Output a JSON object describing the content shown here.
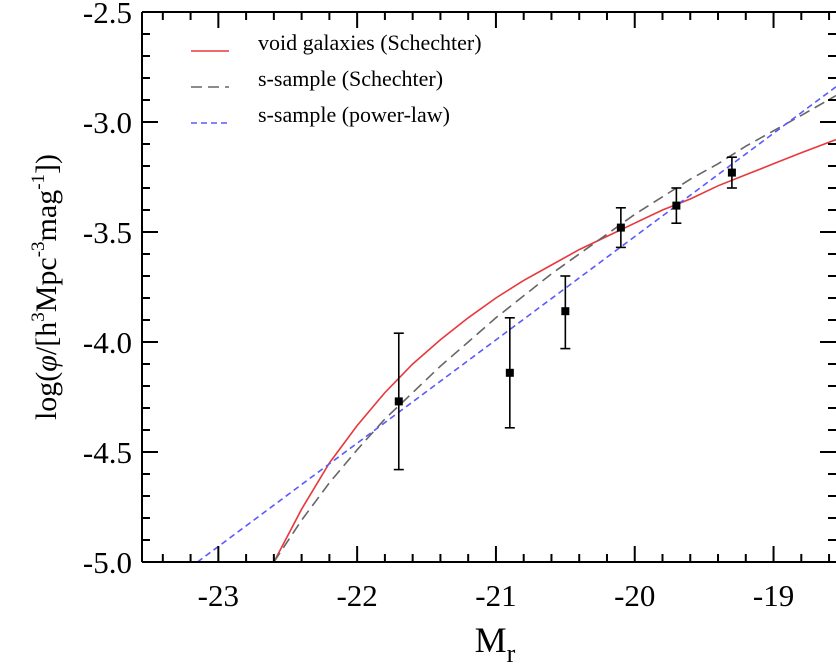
{
  "chart_data": {
    "type": "line",
    "xlabel": "M",
    "xlabel_sub": "r",
    "ylabel_parts": {
      "pre": "log(",
      "phi": "φ",
      "mid1": "/[h",
      "sup1": "3",
      "mid2": "Mpc",
      "sup2": "-3",
      "mid3": "mag",
      "sup3": "-1",
      "post": "])"
    },
    "xlim": [
      -23.55,
      -18.55
    ],
    "ylim": [
      -5.0,
      -2.5
    ],
    "x_ticks": [
      -23,
      -22,
      -21,
      -20,
      -19
    ],
    "x_tick_labels": [
      "-23",
      "-22",
      "-21",
      "-20",
      "-19"
    ],
    "y_ticks": [
      -2.5,
      -3.0,
      -3.5,
      -4.0,
      -4.5,
      -5.0
    ],
    "y_tick_labels": [
      "-2.5",
      "-3.0",
      "-3.5",
      "-4.0",
      "-4.5",
      "-5.0"
    ],
    "legend_position": "top-left",
    "series": [
      {
        "name": "void galaxies (Schechter)",
        "color": "#e8383c",
        "dash": "solid",
        "x": [
          -22.6,
          -22.4,
          -22.2,
          -22.0,
          -21.8,
          -21.6,
          -21.4,
          -21.2,
          -21.0,
          -20.8,
          -20.6,
          -20.4,
          -20.2,
          -20.0,
          -19.8,
          -19.6,
          -19.4,
          -19.2,
          -19.0,
          -18.8,
          -18.55
        ],
        "y": [
          -5.0,
          -4.76,
          -4.55,
          -4.38,
          -4.23,
          -4.1,
          -3.99,
          -3.89,
          -3.8,
          -3.72,
          -3.65,
          -3.58,
          -3.52,
          -3.46,
          -3.4,
          -3.35,
          -3.29,
          -3.24,
          -3.19,
          -3.14,
          -3.08
        ]
      },
      {
        "name": "s-sample (Schechter)",
        "color": "#666666",
        "dash": "dashed",
        "x": [
          -22.6,
          -22.4,
          -22.2,
          -22.0,
          -21.8,
          -21.6,
          -21.4,
          -21.2,
          -21.0,
          -20.8,
          -20.6,
          -20.4,
          -20.2,
          -20.0,
          -19.8,
          -19.6,
          -19.4,
          -19.2,
          -19.0,
          -18.8,
          -18.55
        ],
        "y": [
          -5.0,
          -4.81,
          -4.64,
          -4.49,
          -4.35,
          -4.23,
          -4.11,
          -4.0,
          -3.89,
          -3.79,
          -3.69,
          -3.6,
          -3.51,
          -3.42,
          -3.34,
          -3.26,
          -3.19,
          -3.11,
          -3.04,
          -2.97,
          -2.88
        ]
      },
      {
        "name": "s-sample (power-law)",
        "color": "#5a5aff",
        "dash": "dashed",
        "x": [
          -23.15,
          -18.55
        ],
        "y": [
          -5.0,
          -2.84
        ]
      }
    ],
    "data_points": {
      "x": [
        -21.7,
        -20.9,
        -20.5,
        -20.1,
        -19.7,
        -19.3
      ],
      "y": [
        -4.27,
        -4.14,
        -3.86,
        -3.48,
        -3.38,
        -3.23
      ],
      "yerr_low": [
        0.31,
        0.25,
        0.17,
        0.09,
        0.08,
        0.07
      ],
      "yerr_high": [
        0.31,
        0.25,
        0.16,
        0.09,
        0.08,
        0.07
      ]
    }
  }
}
